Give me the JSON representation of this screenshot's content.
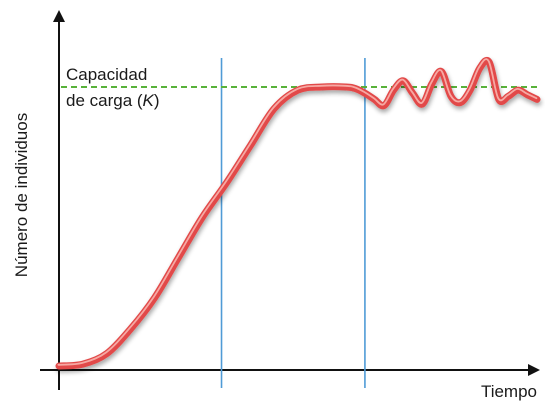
{
  "chart_data": {
    "type": "line",
    "title": "",
    "xlabel": "Tiempo",
    "ylabel": "Número de individuos",
    "xlim": [
      0,
      100
    ],
    "ylim": [
      0,
      100
    ],
    "grid": false,
    "carrying_capacity": {
      "value": 90,
      "label_line1": "Capacidad",
      "label_line2_prefix": "de carga (",
      "label_line2_symbol": "K",
      "label_line2_suffix": ")"
    },
    "reference_x": [
      34,
      64
    ],
    "series": [
      {
        "x": [
          0,
          5,
          10,
          15,
          20,
          25,
          30,
          35,
          40,
          45,
          50,
          55,
          60,
          62,
          64,
          66,
          68,
          70,
          72,
          74,
          76,
          78,
          80,
          82,
          84,
          86,
          88,
          90,
          92,
          94,
          96,
          98,
          100
        ],
        "y": [
          0,
          0.6,
          4,
          12,
          22,
          35,
          48,
          59,
          71,
          83,
          89,
          90,
          90,
          89.5,
          88,
          86,
          84,
          89,
          92,
          88,
          84.5,
          91,
          95,
          87,
          85,
          89,
          96,
          98,
          86,
          87,
          89,
          87.5,
          86
        ]
      }
    ]
  },
  "colors": {
    "curve": "#e24a48",
    "curve_highlight": "#f8b4ae",
    "capacity_line": "#58b23a",
    "reference_line": "#4f9bd6",
    "axis": "#111111"
  }
}
